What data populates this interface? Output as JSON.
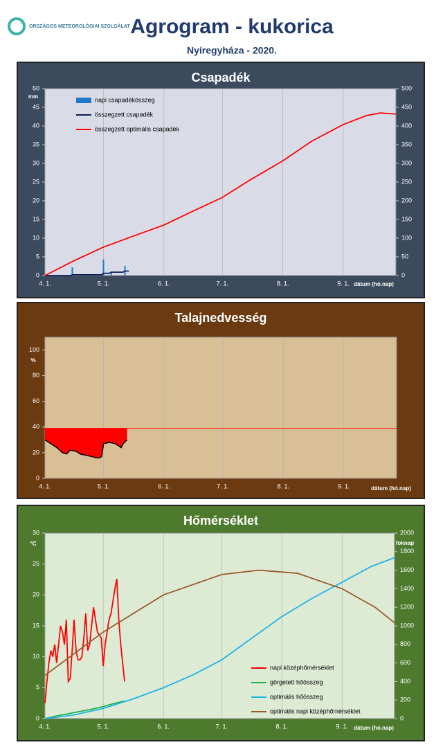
{
  "header": {
    "logo": "ORSZÁGOS METEOROLÓGIAI SZOLGÁLAT",
    "title": "Agrogram - kukorica",
    "subtitle": "Nyíregyháza - 2020."
  },
  "chart_data": [
    {
      "type": "line",
      "title": "Csapadék",
      "y_label": "mm",
      "x_label": "dátum (hó.nap)",
      "xlim": [
        0,
        180
      ],
      "xticks": [
        {
          "value": 0,
          "label": "4. 1."
        },
        {
          "value": 30,
          "label": "5. 1."
        },
        {
          "value": 61,
          "label": "6. 1."
        },
        {
          "value": 91,
          "label": "7. 1."
        },
        {
          "value": 122,
          "label": "8. 1."
        },
        {
          "value": 153,
          "label": "9. 1."
        }
      ],
      "ylim": [
        0,
        50
      ],
      "yticks": [
        0,
        5,
        10,
        15,
        20,
        25,
        30,
        35,
        40,
        45,
        50
      ],
      "y2lim": [
        0,
        500
      ],
      "y2ticks": [
        0,
        50,
        100,
        150,
        200,
        250,
        300,
        350,
        400,
        450,
        500
      ],
      "series": [
        {
          "name": "napi csapadékösszeg",
          "type": "bar",
          "color": "#1f78c8",
          "x": [
            14,
            30,
            34,
            41
          ],
          "values": [
            2.2,
            4.3,
            1.0,
            2.6
          ]
        },
        {
          "name": "összegzett csapadék",
          "type": "line",
          "axis": "y2",
          "color": "#0a1e5a",
          "x": [
            0,
            13,
            14,
            29,
            30,
            33,
            34,
            40,
            41,
            43
          ],
          "values": [
            0,
            0,
            2,
            2,
            6,
            6,
            9,
            9,
            12,
            12
          ]
        },
        {
          "name": "összegzett optimális  csapadék",
          "type": "line",
          "axis": "y2",
          "color": "#ff0000",
          "x": [
            0,
            15,
            30,
            45,
            61,
            75,
            91,
            105,
            122,
            137,
            153,
            165,
            172,
            180
          ],
          "values": [
            0,
            40,
            76,
            105,
            135,
            170,
            209,
            255,
            307,
            360,
            404,
            428,
            435,
            432
          ]
        }
      ]
    },
    {
      "type": "line",
      "title": "Talajnedvesség",
      "y_label": "%",
      "x_label": "dátum (hó.nap)",
      "xlim": [
        0,
        180
      ],
      "xticks": [
        {
          "value": 0,
          "label": "4. 1."
        },
        {
          "value": 30,
          "label": "5. 1."
        },
        {
          "value": 61,
          "label": "6. 1."
        },
        {
          "value": 91,
          "label": "7. 1."
        },
        {
          "value": 122,
          "label": "8. 1."
        },
        {
          "value": 153,
          "label": "9. 1."
        }
      ],
      "ylim": [
        0,
        110
      ],
      "yticks": [
        0,
        20,
        40,
        60,
        80,
        100
      ],
      "threshold": 39,
      "threshold_color": "#ff0000",
      "fill_color": "#ff0000",
      "series": [
        {
          "type": "line",
          "color": "#000000",
          "x": [
            0,
            3,
            6,
            9,
            11,
            13,
            16,
            18,
            21,
            24,
            26,
            28,
            29,
            30,
            33,
            36,
            39,
            40,
            42
          ],
          "values": [
            30,
            27,
            24,
            20,
            19,
            22,
            21,
            19,
            18,
            17,
            16,
            16,
            17,
            27,
            28,
            27,
            24,
            27,
            30
          ]
        }
      ]
    },
    {
      "type": "line",
      "title": "Hőmérséklet",
      "y_label": "°C",
      "y2_label": "foknap",
      "x_label": "dátum (hó.nap)",
      "xlim": [
        0,
        180
      ],
      "xticks": [
        {
          "value": 0,
          "label": "4. 1."
        },
        {
          "value": 30,
          "label": "5. 1."
        },
        {
          "value": 61,
          "label": "6. 1."
        },
        {
          "value": 91,
          "label": "7. 1."
        },
        {
          "value": 122,
          "label": "8. 1."
        },
        {
          "value": 153,
          "label": "9. 1."
        }
      ],
      "ylim": [
        0,
        30
      ],
      "yticks": [
        0,
        5,
        10,
        15,
        20,
        25,
        30
      ],
      "y2lim": [
        0,
        2000
      ],
      "y2ticks": [
        0,
        200,
        400,
        600,
        800,
        1000,
        1200,
        1400,
        1600,
        1800,
        2000
      ],
      "series": [
        {
          "name": "napi középhőmérséklet",
          "type": "line",
          "color": "#ff0000",
          "x": [
            0,
            1,
            2,
            3,
            4,
            5,
            6,
            7,
            8,
            9,
            10,
            11,
            12,
            13,
            14,
            15,
            16,
            17,
            18,
            19,
            20,
            21,
            22,
            23,
            24,
            25,
            26,
            27,
            28,
            29,
            30,
            31,
            32,
            33,
            34,
            35,
            36,
            37,
            38,
            39,
            40,
            41
          ],
          "values": [
            2.5,
            6,
            9,
            11,
            10,
            12,
            9,
            12,
            15,
            14,
            12,
            16,
            6,
            6.5,
            11,
            16,
            11,
            9.5,
            9.5,
            10,
            13,
            17,
            11,
            12,
            15,
            18,
            16,
            14,
            13.5,
            13,
            8.5,
            12,
            14,
            16,
            17,
            19,
            21,
            22.6,
            16,
            12,
            9,
            6
          ]
        },
        {
          "name": "görgetett hőösszeg",
          "type": "line",
          "axis": "y2",
          "color": "#22b14c",
          "x": [
            0,
            5,
            10,
            15,
            20,
            25,
            30,
            35,
            41
          ],
          "values": [
            0,
            25,
            45,
            65,
            85,
            105,
            130,
            160,
            190
          ]
        },
        {
          "name": "optimális hőösszeg",
          "type": "line",
          "axis": "y2",
          "color": "#1eb4e6",
          "x": [
            0,
            15,
            30,
            45,
            61,
            76,
            91,
            106,
            122,
            137,
            153,
            168,
            180
          ],
          "values": [
            0,
            40,
            110,
            210,
            333,
            470,
            633,
            860,
            1100,
            1290,
            1470,
            1640,
            1735
          ]
        },
        {
          "name": "optimális napi középhőmérséklet",
          "type": "line",
          "color": "#9c5a2a",
          "x": [
            0,
            30,
            61,
            91,
            110,
            130,
            153,
            170,
            180
          ],
          "values": [
            7,
            14,
            20,
            23.3,
            24,
            23.5,
            21,
            18,
            15.5
          ]
        }
      ]
    }
  ]
}
